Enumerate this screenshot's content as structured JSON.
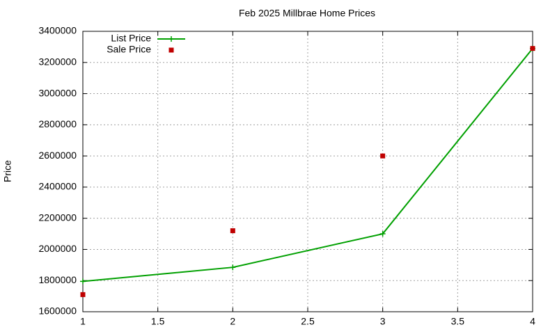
{
  "chart_data": {
    "type": "line",
    "title": "Feb 2025 Millbrae Home Prices",
    "ylabel": "Price",
    "x": [
      1,
      2,
      3,
      4
    ],
    "series": [
      {
        "name": "List Price",
        "color": "#00a000",
        "style": "linespoints",
        "values": [
          1795000,
          1885000,
          2100000,
          3290000
        ]
      },
      {
        "name": "Sale Price",
        "color": "#c00000",
        "style": "points",
        "values": [
          1710000,
          2120000,
          2600000,
          3290000
        ]
      }
    ],
    "xlim": [
      1,
      4
    ],
    "xticks": [
      1,
      1.5,
      2,
      2.5,
      3,
      3.5,
      4
    ],
    "ylim": [
      1600000,
      3400000
    ],
    "yticks": [
      1600000,
      1800000,
      2000000,
      2200000,
      2400000,
      2600000,
      2800000,
      3000000,
      3200000,
      3400000
    ],
    "grid": true,
    "legend": "top-left"
  }
}
